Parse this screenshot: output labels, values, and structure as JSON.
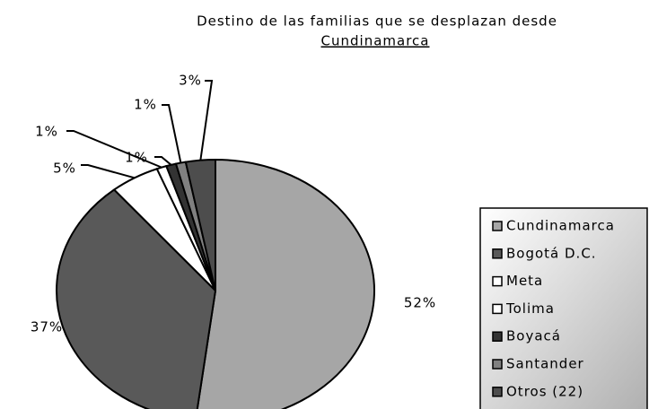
{
  "chart_data": {
    "type": "pie",
    "title": [
      "Destino de las familias que se desplazan desde",
      "Cundinamarca"
    ],
    "categories": [
      "Cundinamarca",
      "Bogotá D.C.",
      "Meta",
      "Tolima",
      "Boyacá",
      "Santander",
      "Otros (22)"
    ],
    "values": [
      52,
      37,
      5,
      1,
      1,
      1,
      3
    ],
    "value_labels": [
      "52%",
      "37%",
      "5%",
      "1%",
      "1%",
      "1%",
      "3%"
    ],
    "colors": [
      "#a6a6a6",
      "#595959",
      "#ffffff",
      "#ffffff",
      "#333333",
      "#808080",
      "#4d4d4d"
    ],
    "legend": "right"
  }
}
